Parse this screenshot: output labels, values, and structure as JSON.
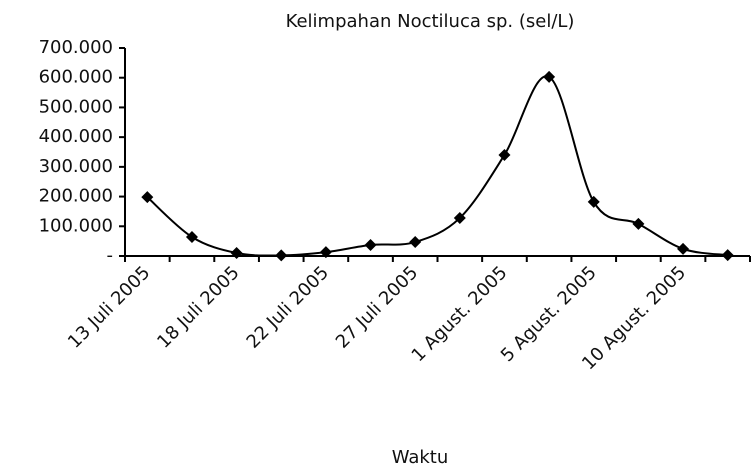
{
  "chart_data": {
    "type": "line",
    "title": "Kelimpahan Noctiluca sp. (sel/L)",
    "x_label": "Waktu",
    "categories": [
      "13 Juli 2005",
      null,
      "18 Juli 2005",
      null,
      "22 Juli 2005",
      null,
      "27 Juli 2005",
      null,
      "1 Agust. 2005",
      null,
      "5 Agust. 2005",
      null,
      "10 Agust. 2005",
      null
    ],
    "series": [
      {
        "name": "Kelimpahan",
        "color": "#000000",
        "values": [
          198000,
          64000,
          10000,
          2000,
          13000,
          37000,
          47000,
          128000,
          340000,
          603000,
          182000,
          108000,
          24000,
          3000
        ]
      }
    ],
    "ylim": [
      0,
      700000
    ],
    "yticks": [
      {
        "value": 0,
        "label": "-"
      },
      {
        "value": 100000,
        "label": "100.000"
      },
      {
        "value": 200000,
        "label": "200.000"
      },
      {
        "value": 300000,
        "label": "300.000"
      },
      {
        "value": 400000,
        "label": "400.000"
      },
      {
        "value": 500000,
        "label": "500.000"
      },
      {
        "value": 600000,
        "label": "600.000"
      },
      {
        "value": 700000,
        "label": "700.000"
      }
    ],
    "grid": false
  }
}
